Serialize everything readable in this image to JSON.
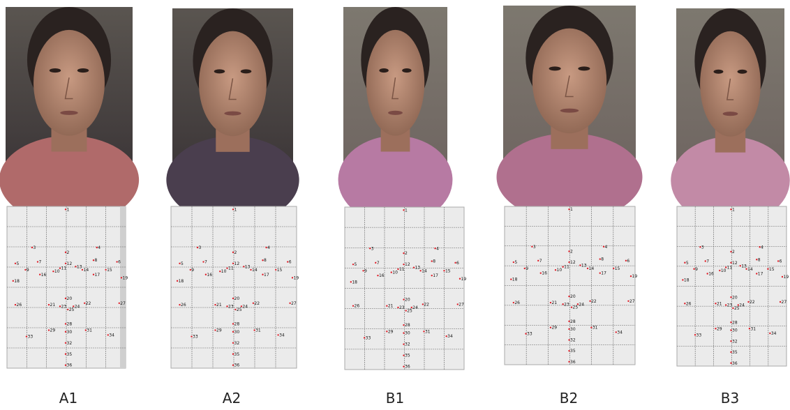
{
  "panels": [
    {
      "label": "A1",
      "landmarks": [
        "1",
        "2",
        "3",
        "4",
        "5",
        "6",
        "7",
        "8",
        "9",
        "10",
        "11",
        "12",
        "13",
        "14",
        "15",
        "16",
        "17",
        "18",
        "19",
        "20",
        "21",
        "22",
        "23",
        "24",
        "25",
        "26",
        "27",
        "28",
        "29",
        "30",
        "31",
        "32",
        "33",
        "34",
        "35",
        "36"
      ]
    },
    {
      "label": "A2",
      "landmarks": [
        "1",
        "2",
        "3",
        "4",
        "5",
        "6",
        "7",
        "8",
        "9",
        "10",
        "11",
        "12",
        "13",
        "14",
        "15",
        "16",
        "17",
        "18",
        "19",
        "20",
        "21",
        "22",
        "23",
        "24",
        "25",
        "26",
        "27",
        "28",
        "29",
        "30",
        "31",
        "32",
        "33",
        "34",
        "35",
        "36"
      ]
    },
    {
      "label": "B1",
      "landmarks": [
        "1",
        "2",
        "3",
        "4",
        "5",
        "6",
        "7",
        "8",
        "9",
        "10",
        "11",
        "12",
        "13",
        "14",
        "15",
        "16",
        "17",
        "18",
        "19",
        "20",
        "21",
        "22",
        "23",
        "24",
        "25",
        "26",
        "27",
        "28",
        "29",
        "30",
        "31",
        "32",
        "33",
        "34",
        "35",
        "36"
      ]
    },
    {
      "label": "B2",
      "landmarks": [
        "1",
        "2",
        "3",
        "4",
        "5",
        "6",
        "7",
        "8",
        "9",
        "10",
        "11",
        "12",
        "13",
        "14",
        "15",
        "16",
        "17",
        "18",
        "19",
        "20",
        "21",
        "22",
        "23",
        "24",
        "25",
        "26",
        "27",
        "28",
        "29",
        "30",
        "31",
        "32",
        "33",
        "34",
        "35",
        "36"
      ]
    },
    {
      "label": "B3",
      "landmarks": [
        "1",
        "2",
        "3",
        "4",
        "5",
        "6",
        "7",
        "8",
        "9",
        "10",
        "11",
        "12",
        "13",
        "14",
        "15",
        "16",
        "17",
        "18",
        "19",
        "20",
        "21",
        "22",
        "23",
        "24",
        "25",
        "26",
        "27",
        "28",
        "29",
        "30",
        "31",
        "32",
        "33",
        "34",
        "35",
        "36"
      ]
    }
  ]
}
